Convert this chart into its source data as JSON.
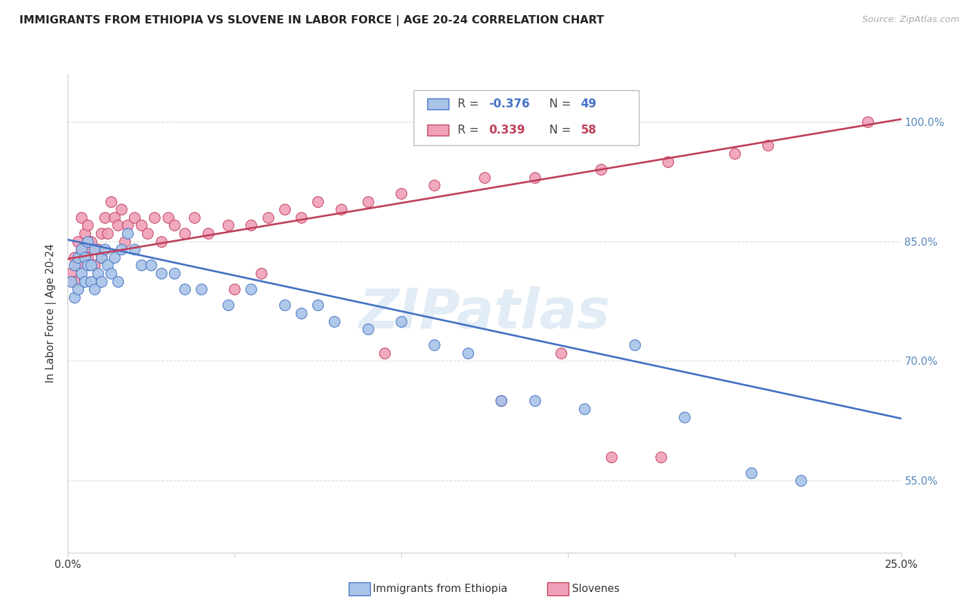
{
  "title": "IMMIGRANTS FROM ETHIOPIA VS SLOVENE IN LABOR FORCE | AGE 20-24 CORRELATION CHART",
  "source": "Source: ZipAtlas.com",
  "ylabel": "In Labor Force | Age 20-24",
  "ytick_labels": [
    "55.0%",
    "70.0%",
    "85.0%",
    "100.0%"
  ],
  "ytick_values": [
    0.55,
    0.7,
    0.85,
    1.0
  ],
  "xmin": 0.0,
  "xmax": 0.25,
  "ymin": 0.46,
  "ymax": 1.06,
  "ethiopia_color": "#a8c4e8",
  "slovene_color": "#f0a0b8",
  "ethiopia_line_color": "#4472c4",
  "slovene_line_color": "#c0405a",
  "legend_ethiopia_R": "-0.376",
  "legend_ethiopia_N": "49",
  "legend_slovene_R": "0.339",
  "legend_slovene_N": "58",
  "watermark": "ZIPatlas",
  "ethiopia_line_x0": 0.0,
  "ethiopia_line_y0": 0.852,
  "ethiopia_line_x1": 0.25,
  "ethiopia_line_y1": 0.628,
  "slovene_line_x0": 0.0,
  "slovene_line_y0": 0.828,
  "slovene_line_x1": 0.25,
  "slovene_line_y1": 1.003,
  "ethiopia_x": [
    0.001,
    0.002,
    0.002,
    0.003,
    0.003,
    0.004,
    0.004,
    0.005,
    0.005,
    0.006,
    0.006,
    0.007,
    0.007,
    0.008,
    0.008,
    0.009,
    0.01,
    0.01,
    0.011,
    0.012,
    0.013,
    0.014,
    0.015,
    0.016,
    0.018,
    0.02,
    0.022,
    0.025,
    0.028,
    0.032,
    0.035,
    0.04,
    0.048,
    0.055,
    0.065,
    0.07,
    0.075,
    0.08,
    0.09,
    0.1,
    0.11,
    0.12,
    0.13,
    0.14,
    0.155,
    0.17,
    0.185,
    0.205,
    0.22
  ],
  "ethiopia_y": [
    0.8,
    0.82,
    0.78,
    0.83,
    0.79,
    0.81,
    0.84,
    0.8,
    0.83,
    0.82,
    0.85,
    0.8,
    0.82,
    0.79,
    0.84,
    0.81,
    0.83,
    0.8,
    0.84,
    0.82,
    0.81,
    0.83,
    0.8,
    0.84,
    0.86,
    0.84,
    0.82,
    0.82,
    0.81,
    0.81,
    0.79,
    0.79,
    0.77,
    0.79,
    0.77,
    0.76,
    0.77,
    0.75,
    0.74,
    0.75,
    0.72,
    0.71,
    0.65,
    0.65,
    0.64,
    0.72,
    0.63,
    0.56,
    0.55
  ],
  "slovene_x": [
    0.001,
    0.002,
    0.002,
    0.003,
    0.003,
    0.004,
    0.004,
    0.005,
    0.005,
    0.006,
    0.006,
    0.007,
    0.008,
    0.009,
    0.01,
    0.01,
    0.011,
    0.012,
    0.013,
    0.014,
    0.015,
    0.016,
    0.017,
    0.018,
    0.02,
    0.022,
    0.024,
    0.026,
    0.028,
    0.03,
    0.032,
    0.035,
    0.038,
    0.042,
    0.048,
    0.055,
    0.06,
    0.065,
    0.07,
    0.075,
    0.082,
    0.09,
    0.1,
    0.11,
    0.125,
    0.14,
    0.16,
    0.18,
    0.2,
    0.21,
    0.05,
    0.058,
    0.095,
    0.13,
    0.148,
    0.163,
    0.178,
    0.24
  ],
  "slovene_y": [
    0.81,
    0.8,
    0.83,
    0.85,
    0.82,
    0.84,
    0.88,
    0.86,
    0.84,
    0.87,
    0.83,
    0.85,
    0.82,
    0.84,
    0.86,
    0.83,
    0.88,
    0.86,
    0.9,
    0.88,
    0.87,
    0.89,
    0.85,
    0.87,
    0.88,
    0.87,
    0.86,
    0.88,
    0.85,
    0.88,
    0.87,
    0.86,
    0.88,
    0.86,
    0.87,
    0.87,
    0.88,
    0.89,
    0.88,
    0.9,
    0.89,
    0.9,
    0.91,
    0.92,
    0.93,
    0.93,
    0.94,
    0.95,
    0.96,
    0.97,
    0.79,
    0.81,
    0.71,
    0.65,
    0.71,
    0.58,
    0.58,
    1.0
  ],
  "grid_color": "#d8d8d8",
  "background_color": "#ffffff",
  "title_color": "#222222",
  "right_axis_color": "#5588bb"
}
